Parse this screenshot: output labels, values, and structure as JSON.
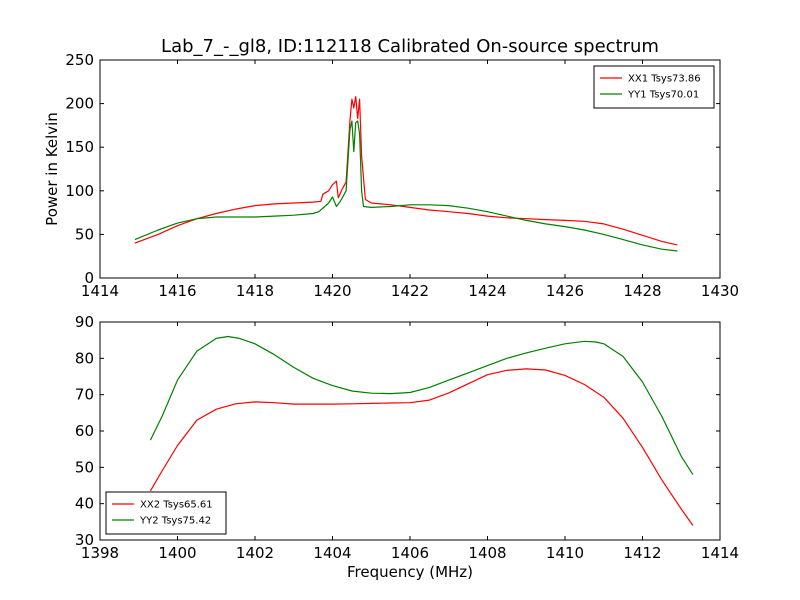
{
  "title": "Lab_7_-_gl8, ID:112118 Calibrated On-source spectrum",
  "colors": {
    "red": "#ff0000",
    "green": "#008000",
    "axis": "#000000",
    "background": "#ffffff"
  },
  "chart_data": [
    {
      "type": "line",
      "xlim": [
        1414,
        1430
      ],
      "ylim": [
        0,
        250
      ],
      "xticks": [
        "1414",
        "1416",
        "1418",
        "1420",
        "1422",
        "1424",
        "1426",
        "1428",
        "1430"
      ],
      "yticks": [
        "0",
        "50",
        "100",
        "150",
        "200",
        "250"
      ],
      "ylabel": "Power in Kelvin",
      "xlabel": "",
      "grid": false,
      "legend_position": "top-right",
      "series": [
        {
          "name": "XX1 Tsys73.86",
          "color": "#ff0000",
          "x": [
            1414.9,
            1415.5,
            1416.0,
            1416.5,
            1417.0,
            1417.5,
            1418.0,
            1418.5,
            1419.0,
            1419.5,
            1419.7,
            1419.75,
            1419.9,
            1420.0,
            1420.1,
            1420.15,
            1420.25,
            1420.35,
            1420.45,
            1420.5,
            1420.55,
            1420.6,
            1420.65,
            1420.7,
            1420.75,
            1420.85,
            1421.0,
            1421.5,
            1422.0,
            1422.5,
            1423.0,
            1423.5,
            1424.0,
            1424.5,
            1425.0,
            1425.5,
            1426.0,
            1426.5,
            1427.0,
            1427.5,
            1428.0,
            1428.5,
            1428.9
          ],
          "values": [
            40,
            50,
            60,
            68,
            74,
            79,
            83,
            85,
            86,
            87,
            88,
            96,
            100,
            107,
            111,
            92,
            102,
            110,
            180,
            205,
            195,
            208,
            183,
            205,
            140,
            90,
            86,
            84,
            81,
            78,
            76,
            74,
            71,
            69,
            68,
            67,
            66,
            65,
            62,
            56,
            49,
            42,
            38
          ]
        },
        {
          "name": "YY1 Tsys70.01",
          "color": "#008000",
          "x": [
            1414.9,
            1415.5,
            1416.0,
            1416.5,
            1417.0,
            1417.5,
            1418.0,
            1418.5,
            1419.0,
            1419.5,
            1419.65,
            1419.8,
            1419.9,
            1420.0,
            1420.1,
            1420.2,
            1420.35,
            1420.45,
            1420.5,
            1420.55,
            1420.6,
            1420.65,
            1420.7,
            1420.75,
            1420.8,
            1421.0,
            1421.5,
            1422.0,
            1422.5,
            1423.0,
            1423.5,
            1424.0,
            1424.5,
            1425.0,
            1425.5,
            1426.0,
            1426.5,
            1427.0,
            1427.5,
            1428.0,
            1428.5,
            1428.9
          ],
          "values": [
            44,
            55,
            63,
            68,
            70,
            70,
            70,
            71,
            72,
            74,
            76,
            82,
            86,
            93,
            82,
            88,
            100,
            170,
            180,
            145,
            178,
            180,
            165,
            100,
            82,
            81,
            82,
            84,
            84,
            83,
            80,
            76,
            71,
            66,
            62,
            59,
            55,
            50,
            44,
            38,
            33,
            31
          ]
        }
      ]
    },
    {
      "type": "line",
      "xlim": [
        1398,
        1414
      ],
      "ylim": [
        30,
        90
      ],
      "xticks": [
        "1398",
        "1400",
        "1402",
        "1404",
        "1406",
        "1408",
        "1410",
        "1412",
        "1414"
      ],
      "yticks": [
        "30",
        "40",
        "50",
        "60",
        "70",
        "80",
        "90"
      ],
      "ylabel": "",
      "xlabel": "Frequency (MHz)",
      "grid": false,
      "legend_position": "bottom-left",
      "series": [
        {
          "name": "XX2 Tsys65.61",
          "color": "#ff0000",
          "x": [
            1399.3,
            1399.6,
            1400.0,
            1400.5,
            1401.0,
            1401.5,
            1402.0,
            1402.5,
            1403.0,
            1403.5,
            1404.0,
            1404.5,
            1405.0,
            1405.5,
            1406.0,
            1406.5,
            1407.0,
            1407.5,
            1408.0,
            1408.5,
            1409.0,
            1409.5,
            1410.0,
            1410.5,
            1411.0,
            1411.5,
            1412.0,
            1412.5,
            1413.0,
            1413.3
          ],
          "values": [
            43.5,
            49,
            56,
            63,
            66,
            67.5,
            68,
            67.8,
            67.4,
            67.4,
            67.4,
            67.5,
            67.6,
            67.7,
            67.8,
            68.5,
            70.5,
            73,
            75.5,
            76.7,
            77.1,
            76.8,
            75.3,
            72.8,
            69.3,
            63.5,
            55.5,
            46.5,
            38.5,
            34
          ]
        },
        {
          "name": "YY2 Tsys75.42",
          "color": "#008000",
          "x": [
            1399.3,
            1399.6,
            1400.0,
            1400.5,
            1401.0,
            1401.3,
            1401.6,
            1402.0,
            1402.5,
            1403.0,
            1403.5,
            1404.0,
            1404.5,
            1405.0,
            1405.5,
            1406.0,
            1406.5,
            1407.0,
            1407.5,
            1408.0,
            1408.5,
            1409.0,
            1409.5,
            1410.0,
            1410.5,
            1410.8,
            1411.0,
            1411.5,
            1412.0,
            1412.5,
            1413.0,
            1413.3
          ],
          "values": [
            57.5,
            64,
            74,
            82,
            85.5,
            86,
            85.5,
            84,
            81,
            77.5,
            74.5,
            72.5,
            71,
            70.4,
            70.3,
            70.6,
            72,
            74,
            76,
            78,
            80,
            81.5,
            82.8,
            84,
            84.7,
            84.5,
            84,
            80.5,
            73.5,
            64,
            53,
            48
          ]
        }
      ]
    }
  ]
}
